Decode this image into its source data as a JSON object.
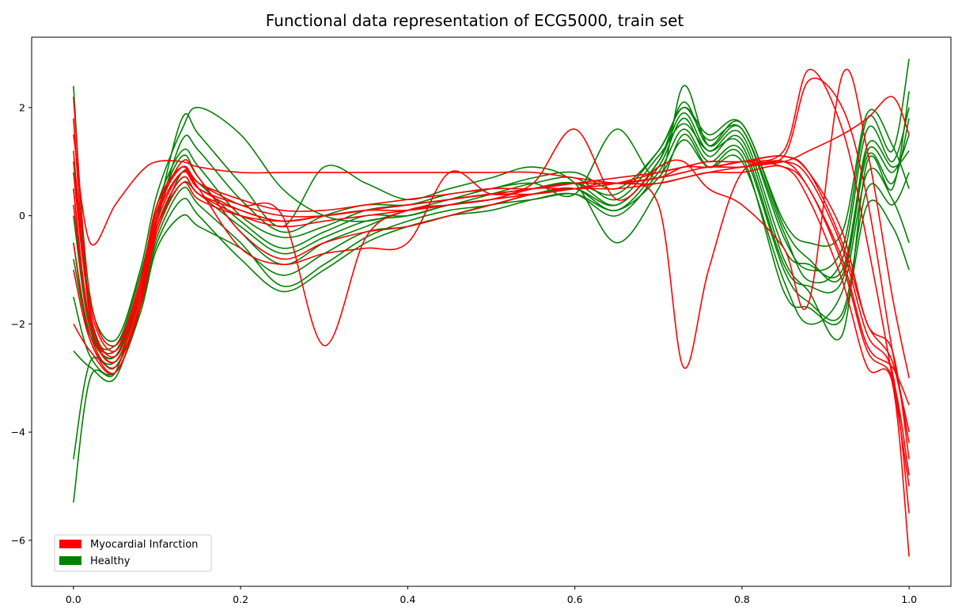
{
  "chart_data": {
    "type": "line",
    "title": "Functional data representation of ECG5000, train set",
    "xlabel": "",
    "ylabel": "",
    "xlim": [
      -0.05,
      1.05
    ],
    "ylim": [
      -6.85,
      3.3
    ],
    "xticks": [
      0.0,
      0.2,
      0.4,
      0.6,
      0.8,
      1.0
    ],
    "xtick_labels": [
      "0.0",
      "0.2",
      "0.4",
      "0.6",
      "0.8",
      "1.0"
    ],
    "yticks": [
      -6,
      -4,
      -2,
      0,
      2
    ],
    "ytick_labels": [
      "−6",
      "−4",
      "−2",
      "0",
      "2"
    ],
    "grid": false,
    "legend_position": "lower-left",
    "legend": [
      {
        "label": "Myocardial Infarction",
        "color": "#ff0000"
      },
      {
        "label": "Healthy",
        "color": "#008000"
      }
    ],
    "x": [
      0.0,
      0.02,
      0.05,
      0.08,
      0.1,
      0.13,
      0.15,
      0.2,
      0.25,
      0.3,
      0.35,
      0.4,
      0.45,
      0.5,
      0.55,
      0.6,
      0.65,
      0.7,
      0.73,
      0.76,
      0.8,
      0.85,
      0.88,
      0.92,
      0.95,
      0.98,
      1.0
    ],
    "series": [
      {
        "color": "#008000",
        "values": [
          -0.5,
          -2.3,
          -2.7,
          -1.5,
          -0.2,
          0.6,
          0.4,
          -0.2,
          -0.7,
          -0.4,
          -0.1,
          0.0,
          0.2,
          0.3,
          0.5,
          0.6,
          0.2,
          1.0,
          1.9,
          1.2,
          1.5,
          -0.6,
          -0.9,
          -1.0,
          1.2,
          0.8,
          1.5
        ]
      },
      {
        "color": "#008000",
        "values": [
          0.5,
          -2.0,
          -2.5,
          -1.2,
          0.2,
          1.2,
          0.9,
          0.0,
          -0.4,
          -0.2,
          0.1,
          0.2,
          0.3,
          0.4,
          0.5,
          0.6,
          0.4,
          1.2,
          2.0,
          1.4,
          1.6,
          -0.3,
          -1.2,
          -0.8,
          1.6,
          1.0,
          2.0
        ]
      },
      {
        "color": "#008000",
        "values": [
          -1.5,
          -2.6,
          -2.9,
          -1.8,
          -0.6,
          0.0,
          -0.2,
          -0.6,
          -1.1,
          -0.7,
          -0.3,
          -0.2,
          0.0,
          0.1,
          0.3,
          0.4,
          0.0,
          0.8,
          1.6,
          1.0,
          1.2,
          -1.0,
          -1.6,
          -1.8,
          0.5,
          0.2,
          0.8
        ]
      },
      {
        "color": "#008000",
        "values": [
          -2.5,
          -2.8,
          -3.0,
          -1.6,
          -0.4,
          0.5,
          0.2,
          -0.5,
          -1.3,
          -0.9,
          -0.4,
          -0.1,
          0.1,
          0.2,
          0.4,
          0.5,
          0.1,
          0.9,
          1.8,
          1.1,
          1.4,
          -0.8,
          -1.4,
          -2.2,
          1.0,
          0.5,
          2.3
        ]
      },
      {
        "color": "#008000",
        "values": [
          1.0,
          -1.6,
          -2.3,
          -1.0,
          0.4,
          1.6,
          2.0,
          1.5,
          0.5,
          0.0,
          -0.1,
          0.1,
          0.3,
          0.5,
          0.6,
          0.4,
          1.6,
          0.7,
          2.4,
          1.3,
          1.6,
          -0.4,
          -1.0,
          -0.6,
          1.8,
          1.2,
          2.9
        ]
      },
      {
        "color": "#008000",
        "values": [
          -0.8,
          -2.2,
          -2.6,
          -1.3,
          0.0,
          1.8,
          1.5,
          0.6,
          -0.2,
          0.9,
          0.6,
          0.3,
          0.5,
          0.7,
          0.9,
          0.6,
          -0.5,
          0.5,
          1.5,
          0.9,
          1.0,
          -1.2,
          -2.0,
          -1.4,
          0.8,
          0.3,
          -0.5
        ]
      },
      {
        "color": "#008000",
        "values": [
          -5.3,
          -3.0,
          -2.9,
          -1.4,
          -0.3,
          0.8,
          0.6,
          -0.1,
          -0.6,
          -0.3,
          0.0,
          0.0,
          0.2,
          0.3,
          0.4,
          0.5,
          0.2,
          1.0,
          2.1,
          1.3,
          1.7,
          -0.2,
          -0.8,
          -1.1,
          1.3,
          0.9,
          1.2
        ]
      },
      {
        "color": "#008000",
        "values": [
          2.4,
          -1.8,
          -2.4,
          -1.1,
          0.1,
          1.1,
          0.7,
          -0.3,
          -0.9,
          -0.5,
          -0.2,
          0.1,
          0.2,
          0.4,
          0.6,
          0.7,
          0.3,
          1.1,
          1.7,
          1.2,
          1.3,
          -0.9,
          -1.3,
          -1.2,
          1.1,
          0.6,
          1.8
        ]
      },
      {
        "color": "#008000",
        "values": [
          -4.5,
          -2.7,
          -2.8,
          -1.7,
          -0.5,
          0.3,
          0.0,
          -0.8,
          -1.4,
          -1.0,
          -0.5,
          -0.2,
          0.0,
          0.2,
          0.3,
          0.4,
          0.1,
          0.7,
          1.4,
          0.9,
          1.1,
          -1.4,
          -1.7,
          -1.9,
          0.2,
          -0.2,
          -1.0
        ]
      },
      {
        "color": "#008000",
        "values": [
          0.0,
          -2.1,
          -2.6,
          -1.4,
          -0.1,
          1.4,
          1.2,
          0.3,
          -0.3,
          0.0,
          0.2,
          0.2,
          0.4,
          0.5,
          0.7,
          0.8,
          0.5,
          1.2,
          2.0,
          1.5,
          1.7,
          -0.1,
          -0.5,
          -0.3,
          1.9,
          1.3,
          0.5
        ]
      },
      {
        "color": "#ff0000",
        "values": [
          1.2,
          -1.8,
          -2.6,
          -1.4,
          0.0,
          0.8,
          0.5,
          0.1,
          -0.1,
          0.0,
          0.1,
          0.2,
          0.3,
          0.4,
          0.5,
          0.6,
          0.6,
          0.7,
          0.8,
          0.9,
          0.9,
          1.0,
          0.5,
          -0.8,
          -2.4,
          -2.8,
          -3.5
        ]
      },
      {
        "color": "#ff0000",
        "values": [
          2.2,
          -1.5,
          -2.4,
          -1.2,
          0.2,
          0.9,
          0.6,
          0.3,
          0.1,
          0.1,
          0.2,
          0.3,
          0.4,
          0.5,
          0.5,
          0.6,
          0.7,
          0.8,
          0.9,
          1.0,
          1.0,
          1.1,
          0.8,
          -0.3,
          -2.0,
          -2.5,
          -4.5
        ]
      },
      {
        "color": "#ff0000",
        "values": [
          -0.5,
          -2.2,
          -2.8,
          -1.6,
          -0.2,
          0.7,
          0.4,
          0.0,
          -0.2,
          -0.1,
          0.0,
          0.1,
          0.2,
          0.3,
          0.4,
          0.5,
          0.5,
          0.6,
          0.7,
          0.8,
          0.8,
          0.9,
          0.3,
          -1.2,
          -2.8,
          -3.1,
          -6.3
        ]
      },
      {
        "color": "#ff0000",
        "values": [
          1.8,
          -1.9,
          -2.5,
          -1.3,
          0.1,
          0.9,
          0.6,
          0.2,
          0.0,
          0.0,
          0.1,
          0.2,
          0.3,
          0.4,
          0.5,
          0.6,
          0.6,
          0.7,
          0.9,
          0.9,
          1.0,
          1.2,
          2.7,
          1.6,
          -0.5,
          -3.0,
          -5.0
        ]
      },
      {
        "color": "#ff0000",
        "values": [
          0.5,
          -2.0,
          -2.7,
          -1.5,
          0.0,
          1.0,
          0.7,
          -0.3,
          -0.8,
          -0.5,
          -0.3,
          -0.2,
          0.0,
          0.2,
          0.4,
          0.5,
          0.6,
          0.8,
          0.9,
          1.0,
          1.0,
          1.1,
          2.5,
          2.0,
          0.3,
          -2.5,
          -4.0
        ]
      },
      {
        "color": "#ff0000",
        "values": [
          -1.0,
          -2.3,
          -2.9,
          -1.7,
          -0.3,
          0.6,
          0.3,
          0.0,
          -0.1,
          0.0,
          0.1,
          0.1,
          0.2,
          0.3,
          0.5,
          0.5,
          0.6,
          0.7,
          0.8,
          0.9,
          0.9,
          1.0,
          0.7,
          -0.6,
          -2.2,
          -2.9,
          -5.5
        ]
      },
      {
        "color": "#ff0000",
        "values": [
          1.5,
          -0.5,
          0.2,
          0.8,
          1.0,
          1.0,
          0.9,
          0.8,
          0.8,
          0.8,
          0.8,
          0.8,
          0.8,
          0.8,
          0.8,
          0.7,
          0.6,
          0.6,
          0.7,
          0.8,
          0.9,
          1.0,
          1.2,
          1.5,
          1.8,
          2.2,
          1.5
        ]
      },
      {
        "color": "#ff0000",
        "values": [
          0.8,
          -1.7,
          -2.5,
          -1.3,
          0.2,
          0.9,
          0.5,
          0.2,
          0.0,
          -2.4,
          -0.4,
          0.1,
          0.2,
          0.3,
          0.5,
          0.6,
          0.6,
          0.7,
          0.9,
          0.9,
          1.0,
          1.1,
          0.8,
          -0.5,
          -2.0,
          -2.7,
          -4.2
        ]
      },
      {
        "color": "#ff0000",
        "values": [
          -2.0,
          -2.5,
          -2.9,
          -1.7,
          -0.2,
          0.7,
          0.4,
          0.1,
          -0.1,
          0.0,
          0.1,
          0.2,
          0.3,
          0.4,
          0.4,
          0.5,
          0.6,
          0.2,
          -2.8,
          -1.0,
          0.8,
          0.9,
          0.5,
          -0.9,
          -2.5,
          -3.0,
          -4.8
        ]
      },
      {
        "color": "#ff0000",
        "values": [
          0.2,
          -2.0,
          -2.7,
          -1.5,
          -0.1,
          0.8,
          0.5,
          -0.6,
          -0.9,
          -0.7,
          -0.6,
          -0.5,
          0.8,
          0.4,
          0.6,
          1.6,
          0.3,
          0.9,
          1.0,
          0.5,
          0.2,
          -0.6,
          -1.6,
          2.6,
          1.2,
          -1.5,
          -3.0
        ]
      }
    ]
  }
}
